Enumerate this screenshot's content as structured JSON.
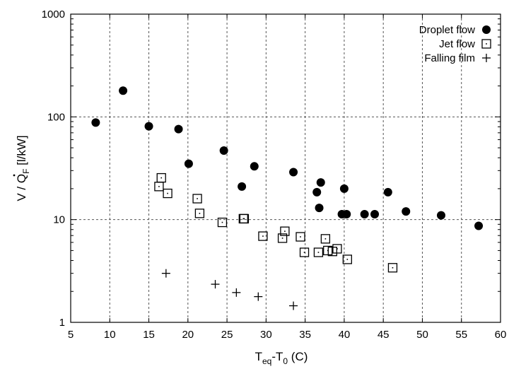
{
  "chart_data": {
    "type": "scatter",
    "title": "",
    "xlabel": "T_eq-T_0 (C)",
    "ylabel": "V / Q_F [l/kW]",
    "xlim": [
      5,
      60
    ],
    "ylim": [
      1,
      1000
    ],
    "yscale": "log",
    "grid": true,
    "legend_position": "top-right",
    "x_ticks": [
      "5",
      "10",
      "15",
      "20",
      "25",
      "30",
      "35",
      "40",
      "45",
      "50",
      "55",
      "60"
    ],
    "y_ticks": [
      "1",
      "10",
      "100",
      "1000"
    ],
    "series": [
      {
        "name": "Droplet flow",
        "marker": "filled-circle",
        "color": "#000000",
        "points": [
          [
            8.2,
            88
          ],
          [
            11.7,
            180
          ],
          [
            15.0,
            81
          ],
          [
            18.8,
            76
          ],
          [
            20.1,
            35
          ],
          [
            24.6,
            47
          ],
          [
            26.9,
            21
          ],
          [
            28.5,
            33
          ],
          [
            33.5,
            29
          ],
          [
            36.5,
            18.5
          ],
          [
            36.8,
            13
          ],
          [
            37.0,
            23
          ],
          [
            39.7,
            11.3
          ],
          [
            40.0,
            20
          ],
          [
            40.3,
            11.3
          ],
          [
            42.6,
            11.3
          ],
          [
            43.9,
            11.3
          ],
          [
            45.6,
            18.5
          ],
          [
            47.9,
            12
          ],
          [
            52.4,
            11
          ],
          [
            57.2,
            8.7
          ]
        ]
      },
      {
        "name": "Jet flow",
        "marker": "open-square",
        "color": "#000000",
        "points": [
          [
            16.3,
            21
          ],
          [
            16.6,
            25.5
          ],
          [
            17.4,
            18
          ],
          [
            21.2,
            16
          ],
          [
            21.5,
            11.5
          ],
          [
            24.4,
            9.4
          ],
          [
            27.1,
            10.2
          ],
          [
            27.2,
            10.2
          ],
          [
            29.6,
            6.9
          ],
          [
            32.1,
            6.6
          ],
          [
            32.4,
            7.7
          ],
          [
            34.4,
            6.8
          ],
          [
            34.9,
            4.8
          ],
          [
            36.7,
            4.8
          ],
          [
            37.6,
            6.5
          ],
          [
            37.9,
            5.0
          ],
          [
            38.5,
            4.9
          ],
          [
            39.1,
            5.2
          ],
          [
            40.4,
            4.1
          ],
          [
            46.2,
            3.4
          ]
        ]
      },
      {
        "name": "Falling film",
        "marker": "plus",
        "color": "#000000",
        "points": [
          [
            17.2,
            3.0
          ],
          [
            23.5,
            2.35
          ],
          [
            26.2,
            1.95
          ],
          [
            29.0,
            1.78
          ],
          [
            33.5,
            1.45
          ]
        ]
      }
    ]
  }
}
